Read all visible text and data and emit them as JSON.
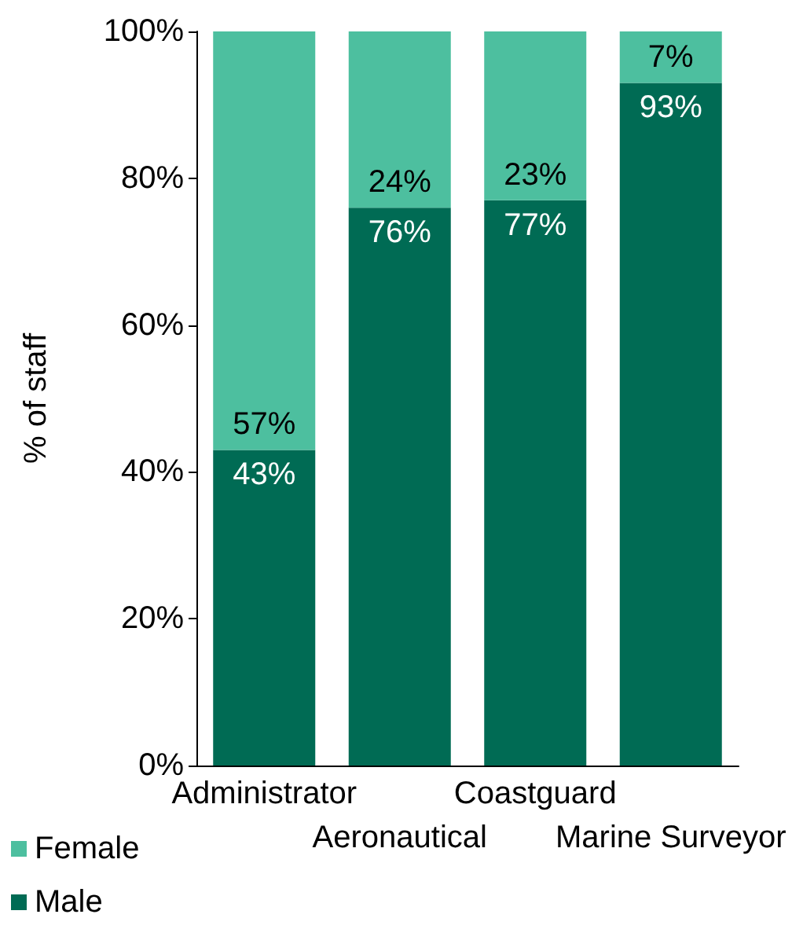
{
  "chart_data": {
    "type": "bar",
    "stacked": true,
    "ylabel": "% of staff",
    "categories": [
      "Administrator",
      "Aeronautical",
      "Coastguard",
      "Marine Surveyor"
    ],
    "series": [
      {
        "name": "Male",
        "color": "#006b54",
        "values": [
          43,
          76,
          77,
          93
        ],
        "value_labels": [
          "43%",
          "76%",
          "77%",
          "93%"
        ]
      },
      {
        "name": "Female",
        "color": "#4dbf9f",
        "values": [
          57,
          24,
          23,
          7
        ],
        "value_labels": [
          "57%",
          "24%",
          "23%",
          "7%"
        ]
      }
    ],
    "ylim": [
      0,
      100
    ],
    "yticks": [
      {
        "value": 0,
        "label": "0%"
      },
      {
        "value": 20,
        "label": "20%"
      },
      {
        "value": 40,
        "label": "40%"
      },
      {
        "value": 60,
        "label": "60%"
      },
      {
        "value": 80,
        "label": "80%"
      },
      {
        "value": 100,
        "label": "100%"
      }
    ],
    "grid": false,
    "legend": "bottom left"
  }
}
